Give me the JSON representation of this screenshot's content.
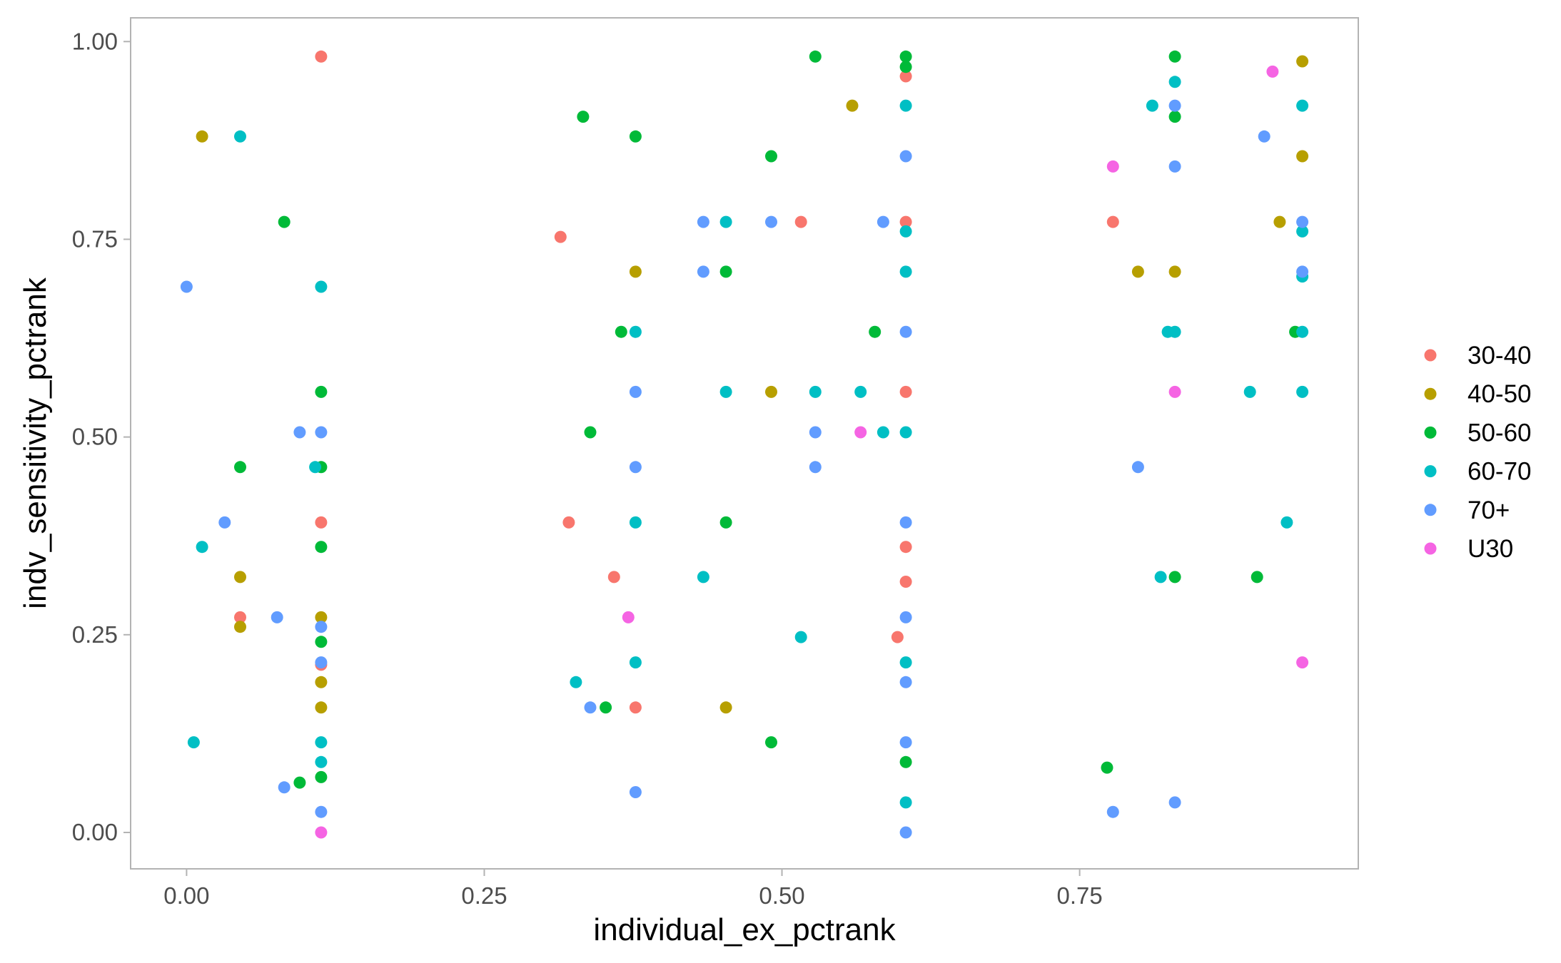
{
  "chart_data": {
    "type": "scatter",
    "xlabel": "individual_ex_pctrank",
    "ylabel": "indv_sensitivity_pctrank",
    "xlim": [
      -0.047,
      0.984
    ],
    "ylim": [
      -0.046,
      1.03
    ],
    "xticks": [
      0.0,
      0.25,
      0.5,
      0.75
    ],
    "xtick_labels": [
      "0.00",
      "0.25",
      "0.50",
      "0.75"
    ],
    "yticks": [
      0.0,
      0.25,
      0.5,
      0.75,
      1.0
    ],
    "ytick_labels": [
      "0.00",
      "0.25",
      "0.50",
      "0.75",
      "1.00"
    ],
    "grid": false,
    "legend_position": "right",
    "series": [
      {
        "name": "30-40",
        "color": "#F8766D",
        "points": [
          [
            0.113,
            0.981
          ],
          [
            0.045,
            0.272
          ],
          [
            0.113,
            0.392
          ],
          [
            0.113,
            0.212
          ],
          [
            0.314,
            0.753
          ],
          [
            0.321,
            0.392
          ],
          [
            0.359,
            0.323
          ],
          [
            0.377,
            0.158
          ],
          [
            0.516,
            0.772
          ],
          [
            0.597,
            0.247
          ],
          [
            0.604,
            0.956
          ],
          [
            0.604,
            0.772
          ],
          [
            0.604,
            0.557
          ],
          [
            0.604,
            0.361
          ],
          [
            0.604,
            0.317
          ],
          [
            0.778,
            0.772
          ]
        ]
      },
      {
        "name": "40-50",
        "color": "#B79F00",
        "points": [
          [
            0.013,
            0.88
          ],
          [
            0.045,
            0.323
          ],
          [
            0.045,
            0.26
          ],
          [
            0.113,
            0.272
          ],
          [
            0.113,
            0.19
          ],
          [
            0.113,
            0.158
          ],
          [
            0.377,
            0.709
          ],
          [
            0.453,
            0.158
          ],
          [
            0.491,
            0.557
          ],
          [
            0.559,
            0.919
          ],
          [
            0.799,
            0.709
          ],
          [
            0.83,
            0.709
          ],
          [
            0.918,
            0.772
          ],
          [
            0.937,
            0.975
          ],
          [
            0.937,
            0.855
          ]
        ]
      },
      {
        "name": "50-60",
        "color": "#00BA38",
        "points": [
          [
            0.082,
            0.772
          ],
          [
            0.045,
            0.462
          ],
          [
            0.095,
            0.063
          ],
          [
            0.113,
            0.557
          ],
          [
            0.113,
            0.462
          ],
          [
            0.113,
            0.361
          ],
          [
            0.113,
            0.241
          ],
          [
            0.113,
            0.07
          ],
          [
            0.333,
            0.905
          ],
          [
            0.339,
            0.506
          ],
          [
            0.352,
            0.158
          ],
          [
            0.365,
            0.633
          ],
          [
            0.377,
            0.88
          ],
          [
            0.453,
            0.709
          ],
          [
            0.453,
            0.392
          ],
          [
            0.491,
            0.855
          ],
          [
            0.491,
            0.114
          ],
          [
            0.528,
            0.981
          ],
          [
            0.578,
            0.633
          ],
          [
            0.604,
            0.981
          ],
          [
            0.604,
            0.968
          ],
          [
            0.604,
            0.089
          ],
          [
            0.773,
            0.082
          ],
          [
            0.83,
            0.981
          ],
          [
            0.83,
            0.905
          ],
          [
            0.83,
            0.323
          ],
          [
            0.899,
            0.323
          ],
          [
            0.931,
            0.633
          ]
        ]
      },
      {
        "name": "60-70",
        "color": "#00BFC4",
        "points": [
          [
            0.045,
            0.88
          ],
          [
            0.013,
            0.361
          ],
          [
            0.006,
            0.114
          ],
          [
            0.108,
            0.462
          ],
          [
            0.113,
            0.69
          ],
          [
            0.113,
            0.114
          ],
          [
            0.113,
            0.089
          ],
          [
            0.327,
            0.19
          ],
          [
            0.377,
            0.633
          ],
          [
            0.377,
            0.392
          ],
          [
            0.377,
            0.215
          ],
          [
            0.434,
            0.323
          ],
          [
            0.453,
            0.772
          ],
          [
            0.453,
            0.557
          ],
          [
            0.516,
            0.247
          ],
          [
            0.528,
            0.557
          ],
          [
            0.566,
            0.557
          ],
          [
            0.585,
            0.506
          ],
          [
            0.604,
            0.919
          ],
          [
            0.604,
            0.76
          ],
          [
            0.604,
            0.709
          ],
          [
            0.604,
            0.506
          ],
          [
            0.604,
            0.215
          ],
          [
            0.604,
            0.038
          ],
          [
            0.811,
            0.919
          ],
          [
            0.818,
            0.323
          ],
          [
            0.824,
            0.633
          ],
          [
            0.83,
            0.949
          ],
          [
            0.83,
            0.633
          ],
          [
            0.893,
            0.557
          ],
          [
            0.924,
            0.392
          ],
          [
            0.937,
            0.919
          ],
          [
            0.937,
            0.76
          ],
          [
            0.937,
            0.703
          ],
          [
            0.937,
            0.633
          ],
          [
            0.937,
            0.557
          ]
        ]
      },
      {
        "name": "70+",
        "color": "#619CFF",
        "points": [
          [
            0.0,
            0.69
          ],
          [
            0.032,
            0.392
          ],
          [
            0.076,
            0.272
          ],
          [
            0.082,
            0.057
          ],
          [
            0.095,
            0.506
          ],
          [
            0.113,
            0.506
          ],
          [
            0.113,
            0.26
          ],
          [
            0.113,
            0.215
          ],
          [
            0.113,
            0.026
          ],
          [
            0.339,
            0.158
          ],
          [
            0.377,
            0.557
          ],
          [
            0.377,
            0.462
          ],
          [
            0.377,
            0.051
          ],
          [
            0.434,
            0.772
          ],
          [
            0.434,
            0.709
          ],
          [
            0.491,
            0.772
          ],
          [
            0.528,
            0.506
          ],
          [
            0.528,
            0.462
          ],
          [
            0.585,
            0.772
          ],
          [
            0.604,
            0.855
          ],
          [
            0.604,
            0.633
          ],
          [
            0.604,
            0.392
          ],
          [
            0.604,
            0.272
          ],
          [
            0.604,
            0.19
          ],
          [
            0.604,
            0.114
          ],
          [
            0.604,
            0.0
          ],
          [
            0.778,
            0.026
          ],
          [
            0.799,
            0.462
          ],
          [
            0.83,
            0.919
          ],
          [
            0.83,
            0.842
          ],
          [
            0.83,
            0.038
          ],
          [
            0.905,
            0.88
          ],
          [
            0.937,
            0.772
          ],
          [
            0.937,
            0.709
          ]
        ]
      },
      {
        "name": "U30",
        "color": "#F564E3",
        "points": [
          [
            0.113,
            0.0
          ],
          [
            0.371,
            0.272
          ],
          [
            0.566,
            0.506
          ],
          [
            0.778,
            0.842
          ],
          [
            0.83,
            0.557
          ],
          [
            0.912,
            0.962
          ],
          [
            0.937,
            0.215
          ]
        ]
      }
    ]
  }
}
